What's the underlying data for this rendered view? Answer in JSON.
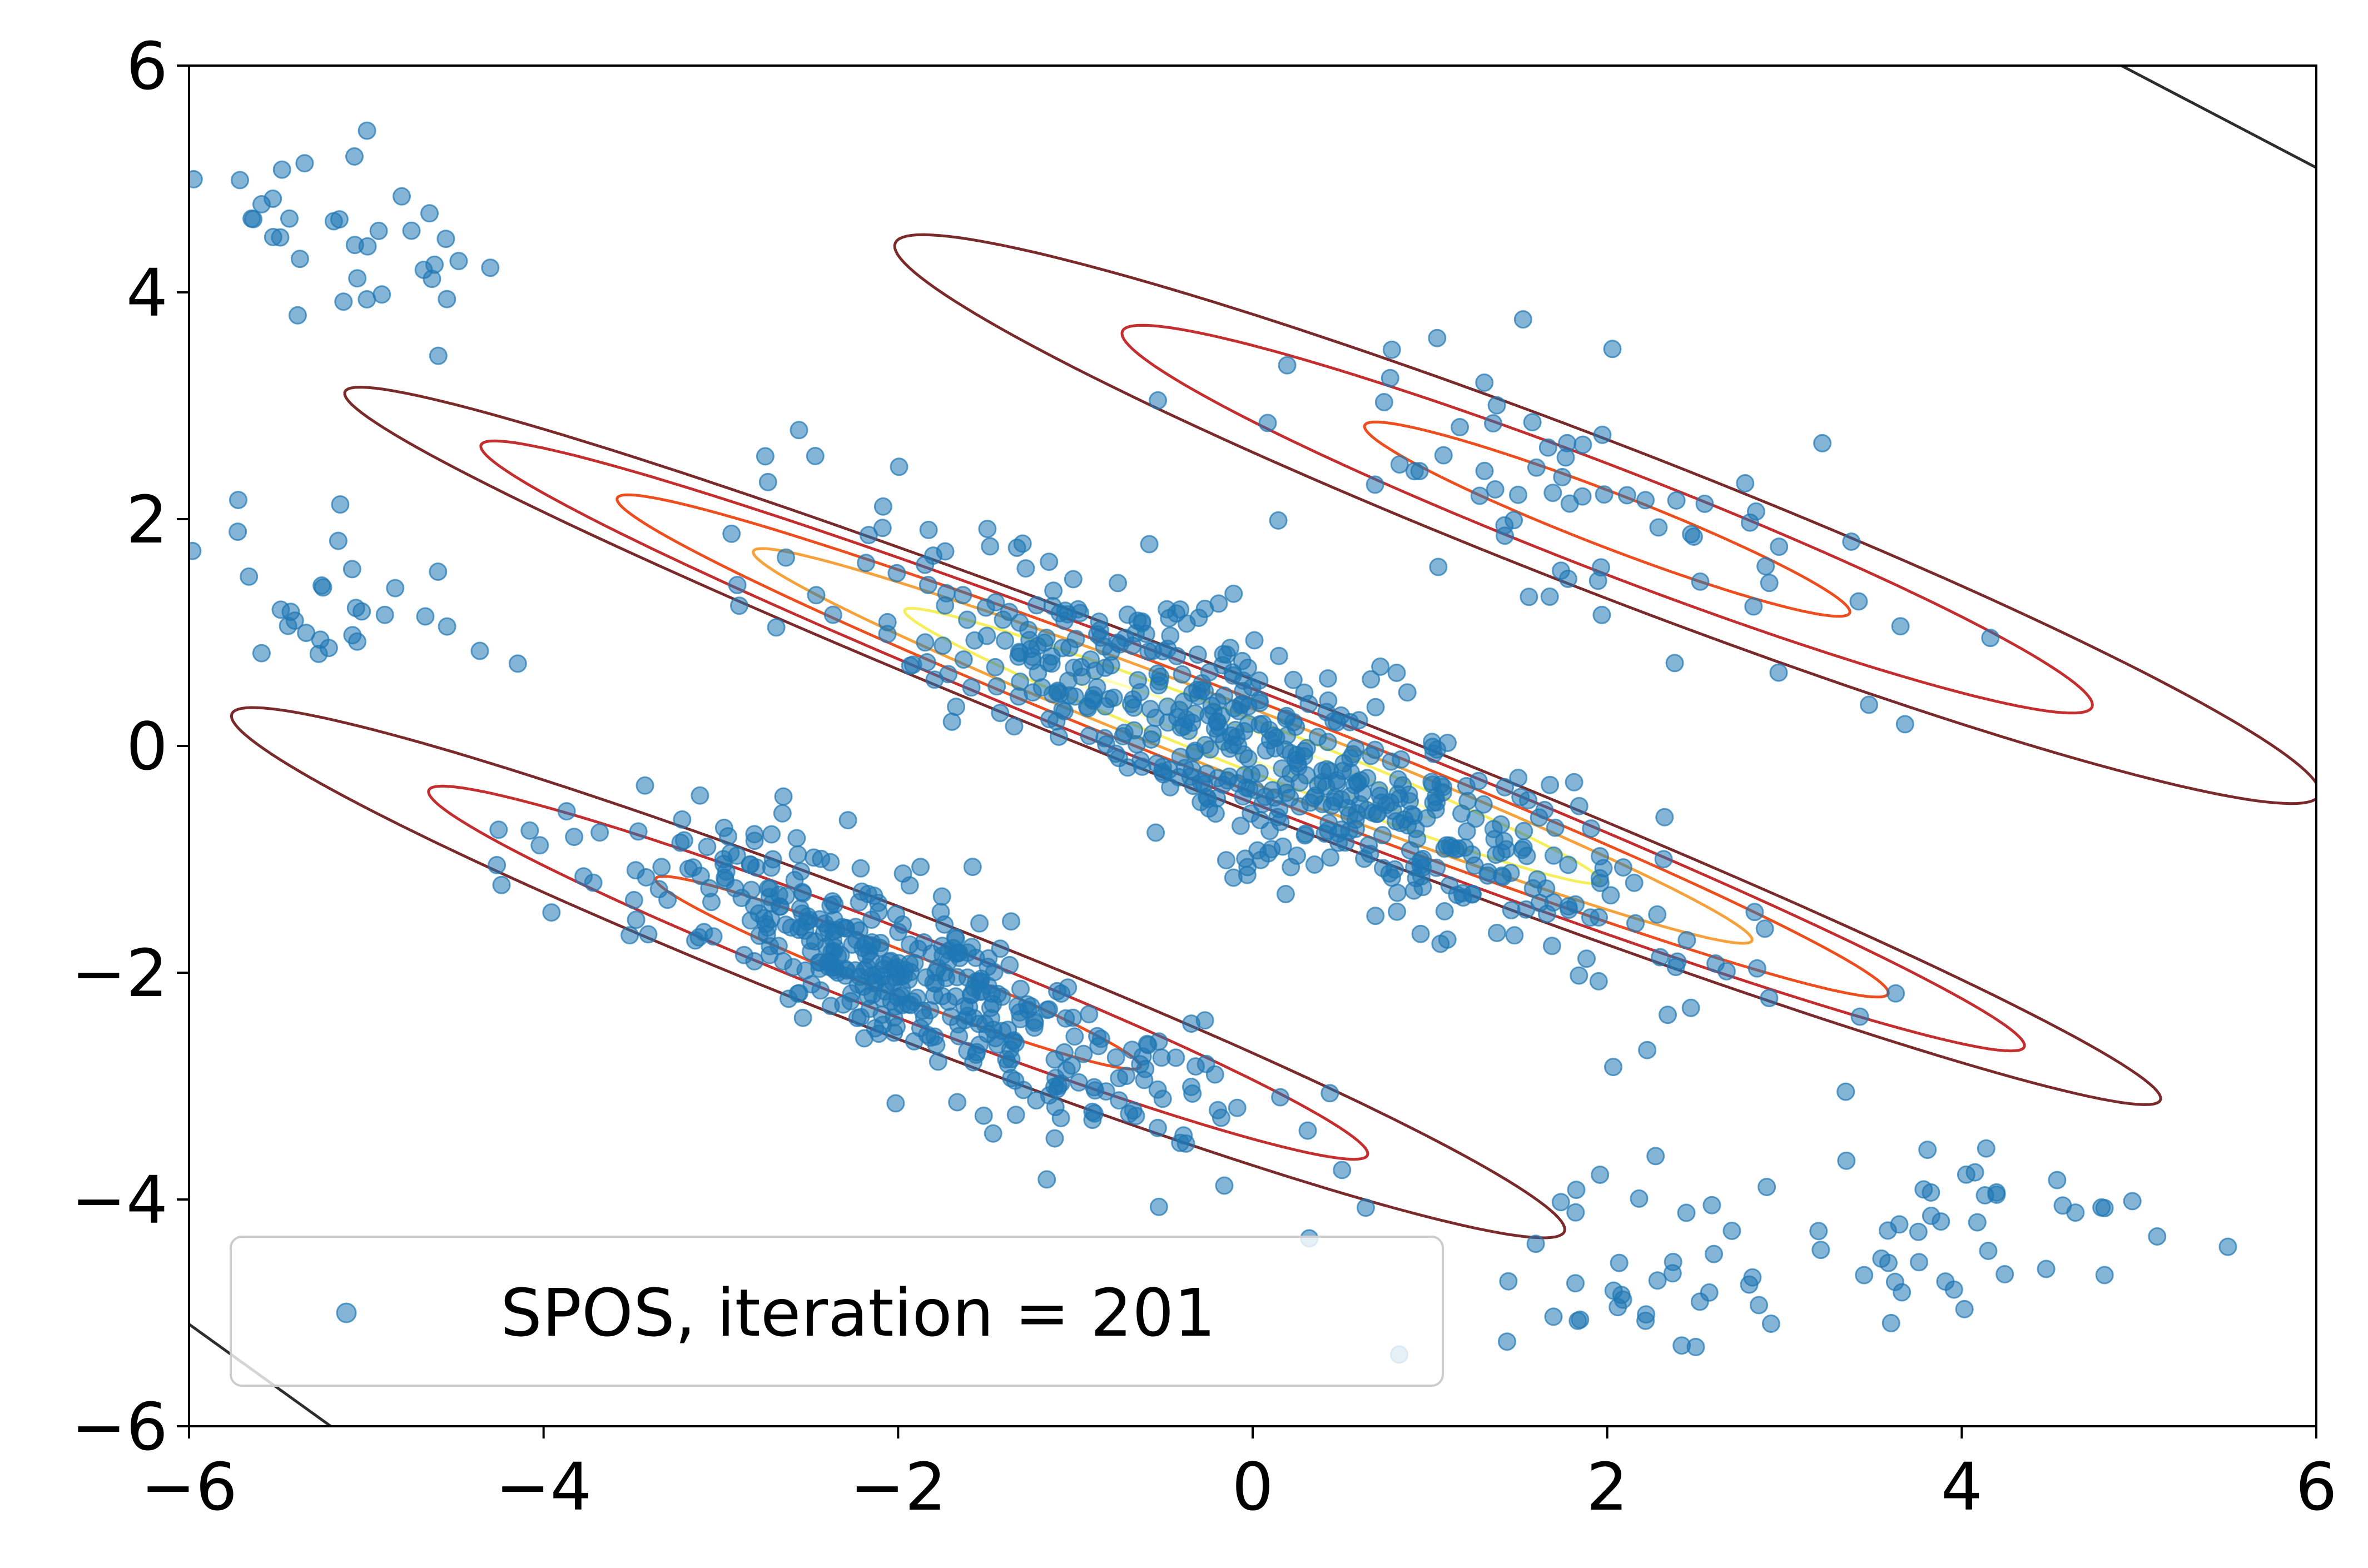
{
  "chart_data": {
    "type": "scatter",
    "title": "",
    "xlabel": "",
    "ylabel": "",
    "xlim": [
      -6,
      6
    ],
    "ylim": [
      -6,
      6
    ],
    "xticks": [
      -6,
      -4,
      -2,
      0,
      2,
      4,
      6
    ],
    "yticks": [
      -6,
      -4,
      -2,
      0,
      2,
      4,
      6
    ],
    "xtick_labels": [
      "−6",
      "−4",
      "−2",
      "0",
      "2",
      "4",
      "6"
    ],
    "ytick_labels": [
      "−6",
      "−4",
      "−2",
      "0",
      "2",
      "4",
      "6"
    ],
    "grid": false,
    "legend": {
      "position": "lower-left",
      "entries": [
        "SPOS, iteration = 201"
      ]
    },
    "series": [
      {
        "name": "SPOS, iteration = 201",
        "marker": "circle",
        "color": "#1f77b4",
        "alpha": 0.55,
        "clusters": [
          {
            "center": [
              0,
              0
            ],
            "direction": [
              0.79,
              -0.61
            ],
            "spread_major": 2.6,
            "spread_minor": 0.38,
            "count": 560
          },
          {
            "center": [
              -2,
              -2
            ],
            "direction": [
              0.79,
              -0.61
            ],
            "spread_major": 1.9,
            "spread_minor": 0.32,
            "count": 420
          },
          {
            "center": [
              2,
              2
            ],
            "direction": [
              0.79,
              -0.61
            ],
            "spread_major": 2.0,
            "spread_minor": 0.45,
            "count": 70
          },
          {
            "center": [
              -5,
              4.5
            ],
            "direction": [
              0.5,
              0.5
            ],
            "spread_major": 0.7,
            "spread_minor": 0.5,
            "count": 35
          },
          {
            "center": [
              -5.2,
              1.2
            ],
            "direction": [
              0.5,
              0.5
            ],
            "spread_major": 0.6,
            "spread_minor": 0.5,
            "count": 30
          },
          {
            "center": [
              2.5,
              -4.6
            ],
            "direction": [
              0.7,
              0.7
            ],
            "spread_major": 1.0,
            "spread_minor": 0.6,
            "count": 45
          },
          {
            "center": [
              4.2,
              -4.2
            ],
            "direction": [
              0.7,
              0.7
            ],
            "spread_major": 0.8,
            "spread_minor": 0.5,
            "count": 35
          }
        ]
      }
    ],
    "contours": [
      {
        "center": [
          0,
          0
        ],
        "angle_deg": -31.5,
        "levels": [
          {
            "a": 6.0,
            "b": 0.5,
            "color": "#7a2a2a"
          },
          {
            "a": 5.1,
            "b": 0.43,
            "color": "#c42e2e"
          },
          {
            "a": 4.2,
            "b": 0.35,
            "color": "#ee4d1e"
          },
          {
            "a": 3.3,
            "b": 0.28,
            "color": "#f6a13a"
          },
          {
            "a": 2.3,
            "b": 0.2,
            "color": "#f6ee5a"
          },
          {
            "a": 1.2,
            "b": 0.11,
            "color": "#fffeb0"
          }
        ]
      },
      {
        "center": [
          -2,
          -2
        ],
        "angle_deg": -31.5,
        "levels": [
          {
            "a": 4.4,
            "b": 0.5,
            "color": "#7a2a2a"
          },
          {
            "a": 3.1,
            "b": 0.34,
            "color": "#c42e2e"
          },
          {
            "a": 1.6,
            "b": 0.18,
            "color": "#ee4d1e"
          }
        ]
      },
      {
        "center": [
          2,
          2
        ],
        "angle_deg": -31.5,
        "levels": [
          {
            "a": 4.7,
            "b": 0.6,
            "color": "#7a2a2a"
          },
          {
            "a": 3.2,
            "b": 0.42,
            "color": "#c42e2e"
          },
          {
            "a": 1.6,
            "b": 0.22,
            "color": "#ee4d1e"
          }
        ]
      }
    ],
    "edge_contours": [
      {
        "points": [
          [
            4.9,
            6
          ],
          [
            6,
            5.1
          ]
        ],
        "color": "#2d2d2d"
      },
      {
        "points": [
          [
            -6,
            -5.1
          ],
          [
            -5.2,
            -6
          ]
        ],
        "color": "#2d2d2d"
      }
    ]
  }
}
